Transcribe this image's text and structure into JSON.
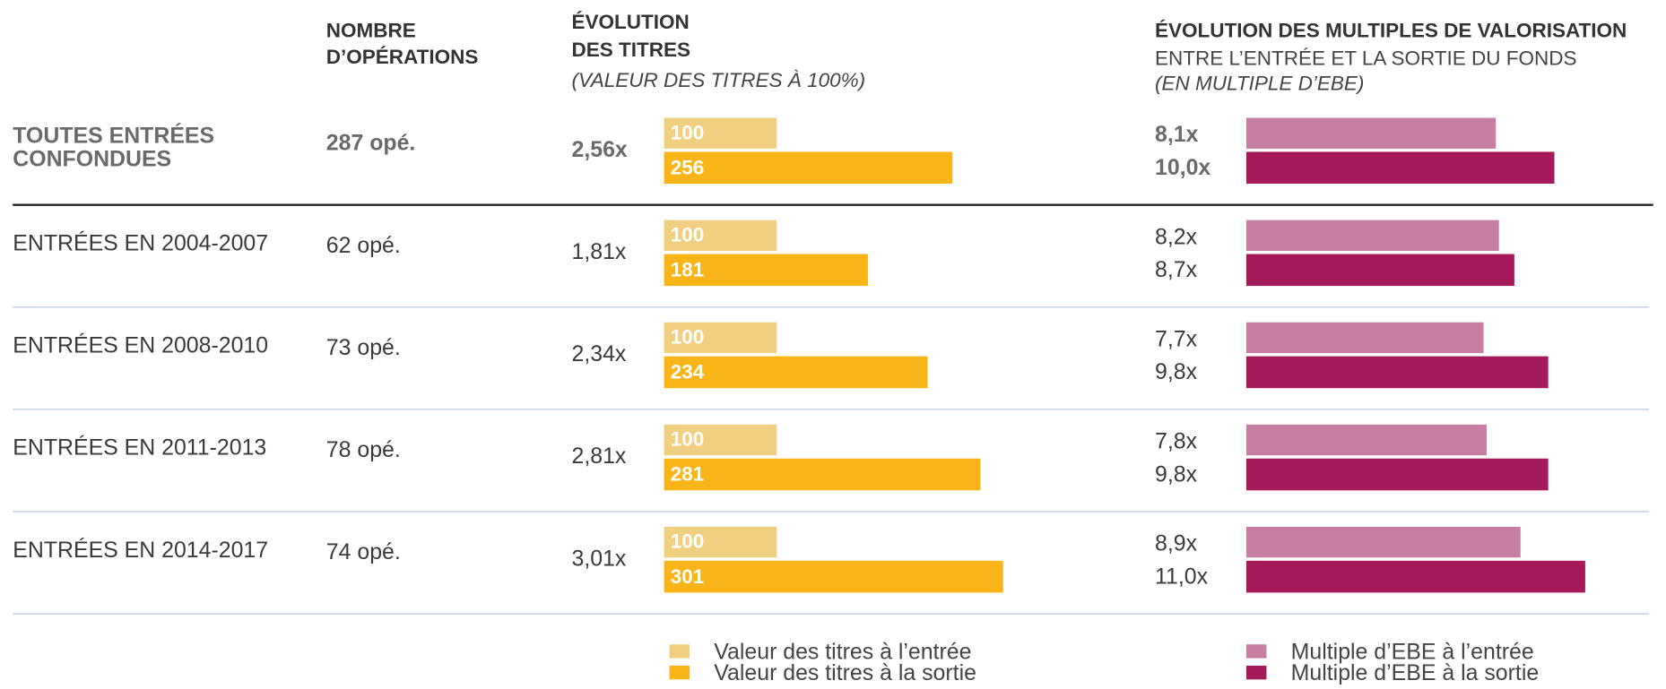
{
  "header": {
    "operations": [
      "NOMBRE",
      "D’OPÉRATIONS"
    ],
    "titles": [
      "ÉVOLUTION",
      "DES TITRES"
    ],
    "titles_note": "(VALEUR DES TITRES À 100%)",
    "multiples": "ÉVOLUTION DES MULTIPLES DE VALORISATION",
    "multiples_sub": "ENTRE L’ENTRÉE ET LA SORTIE DU FONDS",
    "multiples_note": "(EN MULTIPLE D’EBE)"
  },
  "colors": {
    "titles_entry": "#f1cf80",
    "titles_exit": "#f9b517",
    "multiple_entry": "#c67fa3",
    "multiple_exit": "#a51a5b"
  },
  "rows": [
    {
      "label": [
        "TOUTES ENTRÉES",
        "CONFONDUES"
      ],
      "operations": "287 opé.",
      "evolution": "2,56x",
      "titles_entry": 100,
      "titles_exit": 256,
      "multiple_entry": 8.1,
      "multiple_entry_label": "8,1x",
      "multiple_exit": 10.0,
      "multiple_exit_label": "10,0x"
    },
    {
      "label": [
        "ENTRÉES EN 2004-2007"
      ],
      "operations": "62 opé.",
      "evolution": "1,81x",
      "titles_entry": 100,
      "titles_exit": 181,
      "multiple_entry": 8.2,
      "multiple_entry_label": "8,2x",
      "multiple_exit": 8.7,
      "multiple_exit_label": "8,7x"
    },
    {
      "label": [
        "ENTRÉES EN 2008-2010"
      ],
      "operations": "73 opé.",
      "evolution": "2,34x",
      "titles_entry": 100,
      "titles_exit": 234,
      "multiple_entry": 7.7,
      "multiple_entry_label": "7,7x",
      "multiple_exit": 9.8,
      "multiple_exit_label": "9,8x"
    },
    {
      "label": [
        "ENTRÉES EN 2011-2013"
      ],
      "operations": "78 opé.",
      "evolution": "2,81x",
      "titles_entry": 100,
      "titles_exit": 281,
      "multiple_entry": 7.8,
      "multiple_entry_label": "7,8x",
      "multiple_exit": 9.8,
      "multiple_exit_label": "9,8x"
    },
    {
      "label": [
        "ENTRÉES EN 2014-2017"
      ],
      "operations": "74 opé.",
      "evolution": "3,01x",
      "titles_entry": 100,
      "titles_exit": 301,
      "multiple_entry": 8.9,
      "multiple_entry_label": "8,9x",
      "multiple_exit": 11.0,
      "multiple_exit_label": "11,0x"
    }
  ],
  "legend": {
    "titles_entry": "Valeur des titres à l’entrée",
    "titles_exit": "Valeur des titres à la sortie",
    "multiple_entry": "Multiple d’EBE à l’entrée",
    "multiple_exit": "Multiple d’EBE à la sortie"
  }
}
